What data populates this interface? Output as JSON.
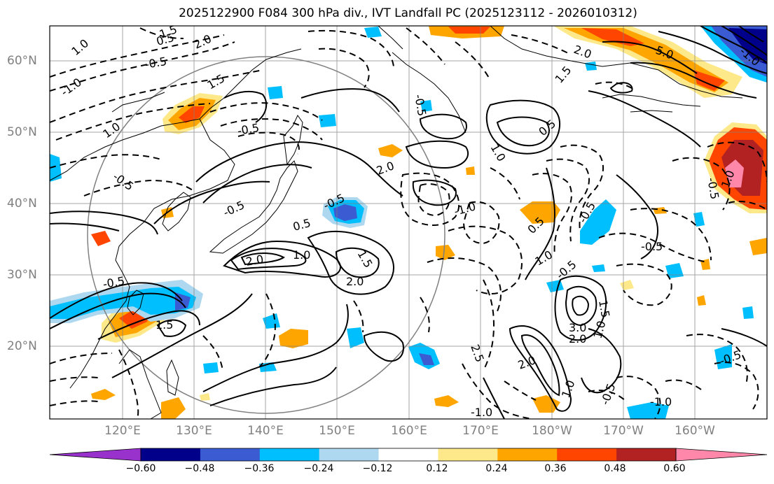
{
  "title": "2025122900 F084 300 hPa div., IVT Landfall PC (2025123112 - 2026010312)",
  "lat_labels": [
    "60°N",
    "50°N",
    "40°N",
    "30°N",
    "20°N"
  ],
  "lon_labels": [
    "120°E",
    "130°E",
    "140°E",
    "150°E",
    "160°E",
    "170°E",
    "180°W",
    "170°W",
    "160°W"
  ],
  "contour_labels": [
    "1.0",
    "1.5",
    "2.0",
    "-0.5",
    "-1.0",
    "0.5",
    "1.5",
    "-0.5",
    "-0.5",
    "1.0",
    "-0.5",
    "-0.5",
    "0.5",
    "2.0",
    "1.0",
    "1.5",
    "2.0",
    "-1.0",
    "-0.5",
    "2.0",
    "1.0",
    "0.5",
    "-0.5",
    "1.5",
    "2.0",
    "0.5",
    "-0.5",
    "2.5",
    "3.0",
    "2.0",
    "1.0",
    "1.5",
    "-0.5",
    "2.0",
    "1.0",
    "-1.0",
    "-0.5",
    "1.0",
    "-0.5",
    "-1.0",
    "-0.5",
    "1.5",
    "5.0",
    "-0.5",
    "-1.0",
    "1.0"
  ],
  "colorbar": {
    "levels": [
      "−0.60",
      "−0.48",
      "−0.36",
      "−0.24",
      "−0.12",
      "0.12",
      "0.24",
      "0.36",
      "0.48",
      "0.60"
    ],
    "colors": [
      "#9932cc",
      "#00008b",
      "#3a5bd1",
      "#00bfff",
      "#add8f0",
      "#ffffff",
      "#fee98a",
      "#ffa500",
      "#ff4500",
      "#b22222",
      "#ff88aa"
    ]
  },
  "colors": {
    "grid": "#808080",
    "coast": "#000000",
    "contour": "#000000",
    "circle": "#808080"
  }
}
